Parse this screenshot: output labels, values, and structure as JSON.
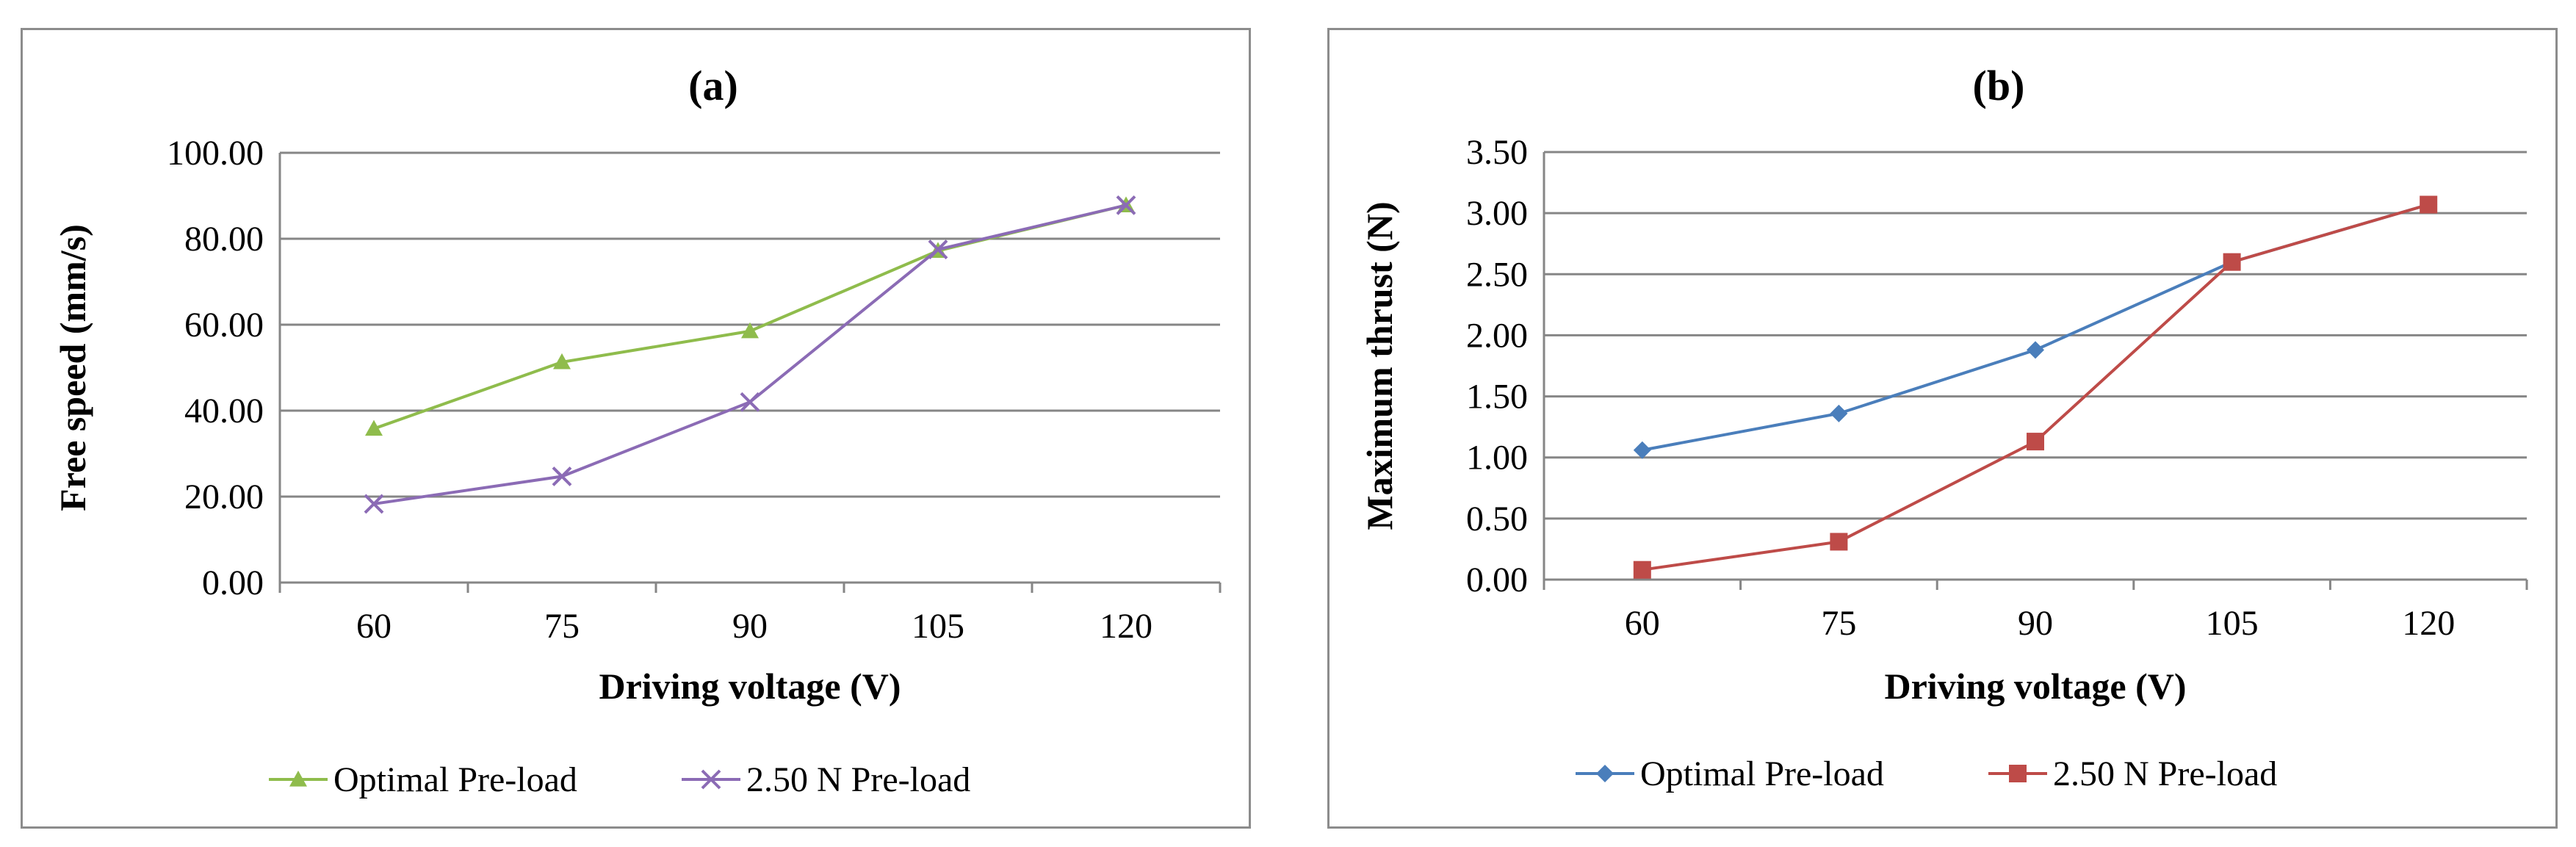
{
  "chart_data": [
    {
      "type": "line",
      "title": "(a)",
      "xlabel": "Driving voltage (V)",
      "ylabel": "Free speed (mm/s)",
      "categories": [
        "60",
        "75",
        "90",
        "105",
        "120"
      ],
      "ylim": [
        0,
        100
      ],
      "ytick_values": [
        0,
        20,
        40,
        60,
        80,
        100
      ],
      "ytick_labels": [
        "0.00",
        "20.00",
        "40.00",
        "60.00",
        "80.00",
        "100.00"
      ],
      "grid": "horizontal",
      "legend_position": "bottom",
      "series": [
        {
          "name": "Optimal Pre-load",
          "values": [
            35.8,
            51.3,
            58.5,
            77.2,
            87.8
          ],
          "color": "#8fbc4c",
          "marker": "triangle"
        },
        {
          "name": "2.50 N Pre-load",
          "values": [
            18.3,
            24.7,
            42.0,
            77.5,
            87.8
          ],
          "color": "#8b6bb5",
          "marker": "x"
        }
      ]
    },
    {
      "type": "line",
      "title": "(b)",
      "xlabel": "Driving voltage (V)",
      "ylabel": "Maximum thrust (N)",
      "categories": [
        "60",
        "75",
        "90",
        "105",
        "120"
      ],
      "ylim": [
        0,
        3.5
      ],
      "ytick_values": [
        0,
        0.5,
        1,
        1.5,
        2,
        2.5,
        3,
        3.5
      ],
      "ytick_labels": [
        "0.00",
        "0.50",
        "1.00",
        "1.50",
        "2.00",
        "2.50",
        "3.00",
        "3.50"
      ],
      "grid": "horizontal",
      "legend_position": "bottom",
      "series": [
        {
          "name": "Optimal Pre-load",
          "values": [
            1.06,
            1.36,
            1.88,
            2.6,
            3.07
          ],
          "color": "#4a7ebb",
          "marker": "diamond"
        },
        {
          "name": "2.50 N Pre-load",
          "values": [
            0.08,
            0.31,
            1.13,
            2.6,
            3.07
          ],
          "color": "#be4b48",
          "marker": "square"
        }
      ]
    }
  ]
}
